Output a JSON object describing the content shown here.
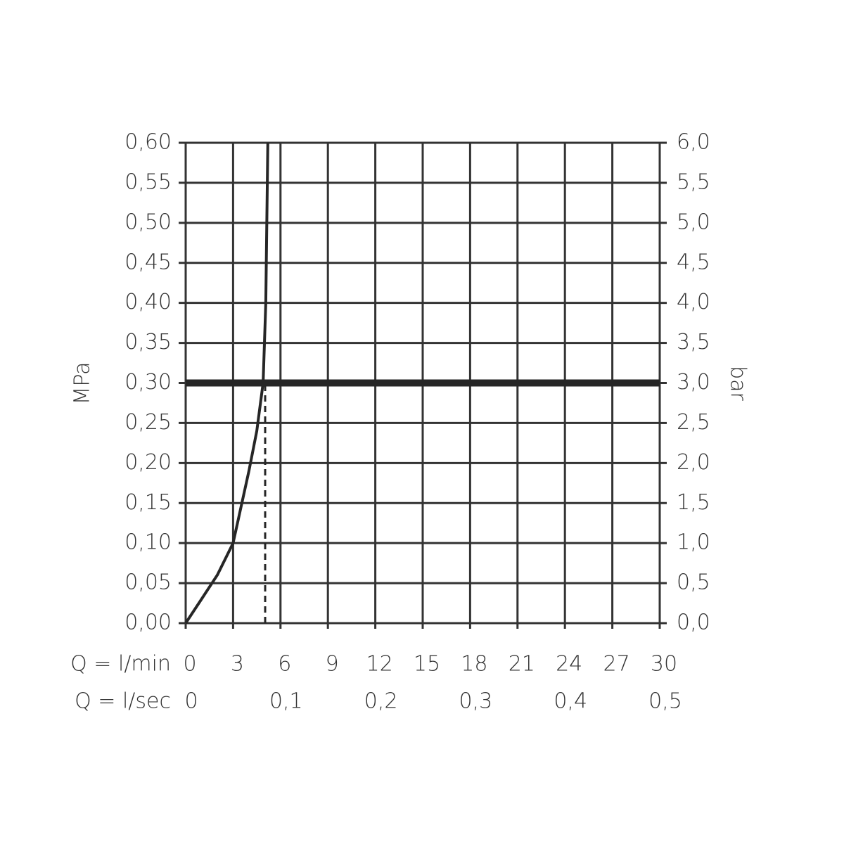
{
  "chart_data": {
    "type": "line",
    "x_row_labels": [
      "Q = l/min",
      "Q = l/sec"
    ],
    "ylabel": "MPa",
    "y2label": "bar",
    "xlim": [
      0,
      30
    ],
    "xticks": [
      0,
      3,
      6,
      9,
      12,
      15,
      18,
      21,
      24,
      27,
      30
    ],
    "x2lim": [
      0,
      0.5
    ],
    "x2ticks": [
      0,
      {
        "value": 0.1,
        "label": "0,1"
      },
      {
        "value": 0.2,
        "label": "0,2"
      },
      {
        "value": 0.3,
        "label": "0,3"
      },
      {
        "value": 0.4,
        "label": "0,4"
      },
      {
        "value": 0.5,
        "label": "0,5"
      }
    ],
    "ylim": [
      0,
      0.6
    ],
    "yticks": [
      {
        "value": 0,
        "label": "0,00"
      },
      {
        "value": 0.05,
        "label": "0,05"
      },
      {
        "value": 0.1,
        "label": "0,10"
      },
      {
        "value": 0.15,
        "label": "0,15"
      },
      {
        "value": 0.2,
        "label": "0,20"
      },
      {
        "value": 0.25,
        "label": "0,25"
      },
      {
        "value": 0.3,
        "label": "0,30"
      },
      {
        "value": 0.35,
        "label": "0,35"
      },
      {
        "value": 0.4,
        "label": "0,40"
      },
      {
        "value": 0.45,
        "label": "0,45"
      },
      {
        "value": 0.5,
        "label": "0,50"
      },
      {
        "value": 0.55,
        "label": "0,55"
      },
      {
        "value": 0.6,
        "label": "0,60"
      }
    ],
    "y2lim": [
      0,
      6
    ],
    "y2ticks": [
      {
        "value": 0,
        "label": "0,0"
      },
      {
        "value": 0.5,
        "label": "0,5"
      },
      {
        "value": 1,
        "label": "1,0"
      },
      {
        "value": 1.5,
        "label": "1,5"
      },
      {
        "value": 2,
        "label": "2,0"
      },
      {
        "value": 2.5,
        "label": "2,5"
      },
      {
        "value": 3,
        "label": "3,0"
      },
      {
        "value": 3.5,
        "label": "3,5"
      },
      {
        "value": 4,
        "label": "4,0"
      },
      {
        "value": 4.5,
        "label": "4,5"
      },
      {
        "value": 5,
        "label": "5,0"
      },
      {
        "value": 5.5,
        "label": "5,5"
      },
      {
        "value": 6,
        "label": "6,0"
      }
    ],
    "grid": true,
    "series": [
      {
        "color": "#262626",
        "x": [
          0,
          1,
          2,
          3,
          4,
          4.5,
          4.9,
          5.07,
          5.2
        ],
        "values": [
          0,
          0.03,
          0.06,
          0.1,
          0.19,
          0.24,
          0.3,
          0.4,
          0.6
        ]
      }
    ],
    "reference_lines": [
      {
        "x": 5.03,
        "y_to": 0.3,
        "style": "dashed",
        "color": "#262626"
      },
      {
        "y": 0.3,
        "style": "solid",
        "color": "#262626"
      }
    ]
  }
}
